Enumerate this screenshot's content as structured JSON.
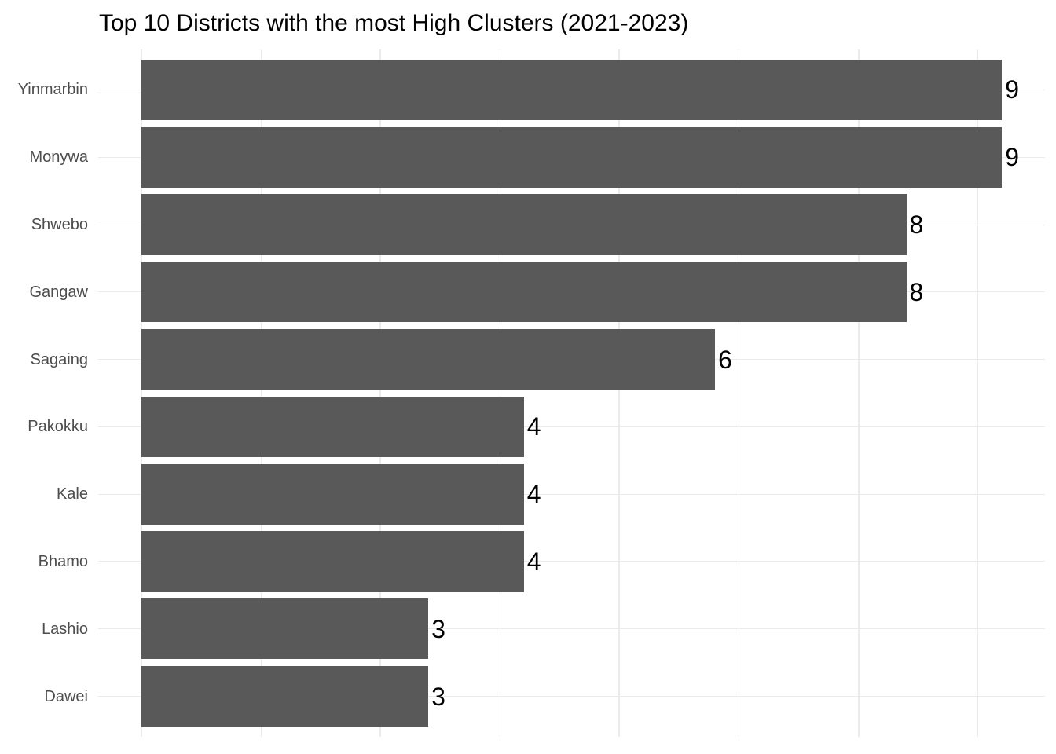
{
  "chart_data": {
    "type": "bar",
    "orientation": "horizontal",
    "title": "Top 10 Districts with the most High Clusters (2021-2023)",
    "categories": [
      "Yinmarbin",
      "Monywa",
      "Shwebo",
      "Gangaw",
      "Sagaing",
      "Pakokku",
      "Kale",
      "Bhamo",
      "Lashio",
      "Dawei"
    ],
    "values": [
      9,
      9,
      8,
      8,
      6,
      4,
      4,
      4,
      3,
      3
    ],
    "value_labels": [
      "9",
      "9",
      "8",
      "8",
      "6",
      "4",
      "4",
      "4",
      "3",
      "3"
    ],
    "xlabel": "",
    "ylabel": "",
    "xlim": [
      0,
      9.45
    ],
    "x_gridlines_major": [
      0,
      2.5,
      5,
      7.5
    ],
    "x_gridlines_minor": [
      1.25,
      3.75,
      6.25,
      8.75
    ],
    "grid": true,
    "legend": "none",
    "x_axis_tick_labels": "none",
    "colors": {
      "bar": "#595959",
      "gridline": "#ebebeb",
      "axis_text": "#4d4d4d",
      "value_text": "#000000",
      "title_text": "#000000",
      "background": "#ffffff"
    }
  }
}
